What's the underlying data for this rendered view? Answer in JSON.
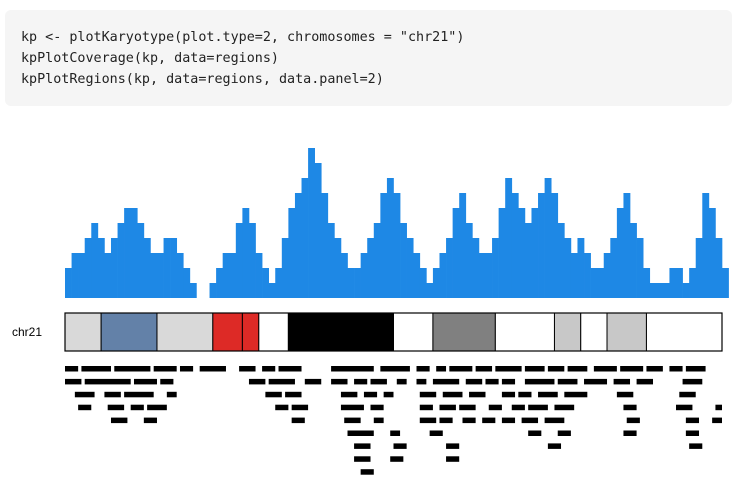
{
  "code": {
    "lines": [
      "kp <- plotKaryotype(plot.type=2, chromosomes = \"chr21\")",
      "kpPlotCoverage(kp, data=regions)",
      "kpPlotRegions(kp, data=regions, data.panel=2)"
    ]
  },
  "chart_data": {
    "type": "area",
    "title": "",
    "chromosome": "chr21",
    "colors": {
      "coverage": "#1e88e5",
      "regions": "#000000",
      "ideogram_outline": "#000000"
    },
    "coverage": {
      "x": [
        0,
        1,
        2,
        3,
        4,
        5,
        6,
        7,
        8,
        9,
        10,
        11,
        12,
        13,
        14,
        15,
        16,
        17,
        18,
        19,
        20,
        21,
        22,
        23,
        24,
        25,
        26,
        27,
        28,
        29,
        30,
        31,
        32,
        33,
        34,
        35,
        36,
        37,
        38,
        39,
        40,
        41,
        42,
        43,
        44,
        45,
        46,
        47,
        48,
        49,
        50,
        51,
        52,
        53,
        54,
        55,
        56,
        57,
        58,
        59,
        60,
        61,
        62,
        63,
        64,
        65,
        66,
        67,
        68,
        69,
        70,
        71,
        72,
        73,
        74,
        75,
        76,
        77,
        78,
        79,
        80,
        81,
        82,
        83,
        84,
        85,
        86,
        87,
        88,
        89,
        90,
        91,
        92,
        93,
        94,
        95,
        96,
        97,
        98,
        99,
        100
      ],
      "y": [
        2,
        3,
        3,
        4,
        5,
        4,
        3,
        4,
        5,
        6,
        6,
        5,
        4,
        3,
        3,
        4,
        4,
        3,
        2,
        1,
        0,
        0,
        1,
        2,
        3,
        3,
        5,
        6,
        5,
        3,
        2,
        1,
        2,
        4,
        6,
        7,
        8,
        10,
        9,
        7,
        5,
        4,
        3,
        2,
        2,
        3,
        4,
        5,
        7,
        8,
        7,
        5,
        4,
        3,
        2,
        1,
        2,
        3,
        4,
        6,
        7,
        5,
        4,
        3,
        3,
        4,
        6,
        8,
        7,
        6,
        5,
        6,
        7,
        8,
        7,
        5,
        4,
        3,
        4,
        3,
        2,
        2,
        3,
        4,
        6,
        7,
        5,
        4,
        2,
        1,
        1,
        1,
        2,
        2,
        1,
        2,
        4,
        7,
        6,
        4,
        2
      ]
    },
    "ideogram": [
      {
        "start": 0.0,
        "end": 5.5,
        "color": "#d9d9d9"
      },
      {
        "start": 5.5,
        "end": 14.0,
        "color": "#6381a8"
      },
      {
        "start": 14.0,
        "end": 22.5,
        "color": "#d9d9d9"
      },
      {
        "start": 22.5,
        "end": 27.0,
        "color": "#dd2a26"
      },
      {
        "start": 27.0,
        "end": 29.5,
        "color": "#dd2a26"
      },
      {
        "start": 29.5,
        "end": 34.0,
        "color": "#ffffff"
      },
      {
        "start": 34.0,
        "end": 50.0,
        "color": "#000000"
      },
      {
        "start": 50.0,
        "end": 56.0,
        "color": "#ffffff"
      },
      {
        "start": 56.0,
        "end": 65.5,
        "color": "#808080"
      },
      {
        "start": 65.5,
        "end": 74.5,
        "color": "#ffffff"
      },
      {
        "start": 74.5,
        "end": 78.5,
        "color": "#c8c8c8"
      },
      {
        "start": 78.5,
        "end": 82.5,
        "color": "#ffffff"
      },
      {
        "start": 82.5,
        "end": 88.5,
        "color": "#c8c8c8"
      },
      {
        "start": 88.5,
        "end": 100.0,
        "color": "#ffffff"
      }
    ],
    "regions": [
      {
        "start": 0.0,
        "end": 2.0,
        "row": 0
      },
      {
        "start": 2.5,
        "end": 7.0,
        "row": 0
      },
      {
        "start": 7.5,
        "end": 13.0,
        "row": 0
      },
      {
        "start": 13.5,
        "end": 17.0,
        "row": 0
      },
      {
        "start": 17.5,
        "end": 19.5,
        "row": 0
      },
      {
        "start": 20.5,
        "end": 24.5,
        "row": 0
      },
      {
        "start": 26.5,
        "end": 29.0,
        "row": 0
      },
      {
        "start": 30.0,
        "end": 32.0,
        "row": 0
      },
      {
        "start": 32.5,
        "end": 36.0,
        "row": 0
      },
      {
        "start": 40.5,
        "end": 47.0,
        "row": 0
      },
      {
        "start": 48.0,
        "end": 52.5,
        "row": 0
      },
      {
        "start": 53.5,
        "end": 55.5,
        "row": 0
      },
      {
        "start": 56.5,
        "end": 58.0,
        "row": 0
      },
      {
        "start": 58.5,
        "end": 62.0,
        "row": 0
      },
      {
        "start": 62.5,
        "end": 65.0,
        "row": 0
      },
      {
        "start": 65.5,
        "end": 69.5,
        "row": 0
      },
      {
        "start": 70.0,
        "end": 73.0,
        "row": 0
      },
      {
        "start": 73.5,
        "end": 76.0,
        "row": 0
      },
      {
        "start": 76.5,
        "end": 79.5,
        "row": 0
      },
      {
        "start": 80.5,
        "end": 84.0,
        "row": 0
      },
      {
        "start": 84.5,
        "end": 88.0,
        "row": 0
      },
      {
        "start": 88.5,
        "end": 91.0,
        "row": 0
      },
      {
        "start": 92.0,
        "end": 94.0,
        "row": 0
      },
      {
        "start": 94.5,
        "end": 97.5,
        "row": 0
      },
      {
        "start": 0.0,
        "end": 2.5,
        "row": 1
      },
      {
        "start": 3.0,
        "end": 10.0,
        "row": 1
      },
      {
        "start": 10.5,
        "end": 14.0,
        "row": 1
      },
      {
        "start": 14.5,
        "end": 16.5,
        "row": 1
      },
      {
        "start": 28.0,
        "end": 30.5,
        "row": 1
      },
      {
        "start": 31.0,
        "end": 35.0,
        "row": 1
      },
      {
        "start": 36.5,
        "end": 39.0,
        "row": 1
      },
      {
        "start": 40.5,
        "end": 43.0,
        "row": 1
      },
      {
        "start": 44.0,
        "end": 46.0,
        "row": 1
      },
      {
        "start": 46.5,
        "end": 49.0,
        "row": 1
      },
      {
        "start": 50.5,
        "end": 52.0,
        "row": 1
      },
      {
        "start": 53.5,
        "end": 55.0,
        "row": 1
      },
      {
        "start": 56.0,
        "end": 60.0,
        "row": 1
      },
      {
        "start": 61.0,
        "end": 63.5,
        "row": 1
      },
      {
        "start": 64.0,
        "end": 66.0,
        "row": 1
      },
      {
        "start": 66.5,
        "end": 68.5,
        "row": 1
      },
      {
        "start": 70.0,
        "end": 74.5,
        "row": 1
      },
      {
        "start": 75.0,
        "end": 78.0,
        "row": 1
      },
      {
        "start": 79.0,
        "end": 82.5,
        "row": 1
      },
      {
        "start": 83.5,
        "end": 86.0,
        "row": 1
      },
      {
        "start": 87.0,
        "end": 89.5,
        "row": 1
      },
      {
        "start": 94.0,
        "end": 97.0,
        "row": 1
      },
      {
        "start": 1.5,
        "end": 4.5,
        "row": 2
      },
      {
        "start": 6.0,
        "end": 8.5,
        "row": 2
      },
      {
        "start": 9.0,
        "end": 13.5,
        "row": 2
      },
      {
        "start": 15.5,
        "end": 17.0,
        "row": 2
      },
      {
        "start": 30.5,
        "end": 33.0,
        "row": 2
      },
      {
        "start": 33.5,
        "end": 36.0,
        "row": 2
      },
      {
        "start": 42.0,
        "end": 44.5,
        "row": 2
      },
      {
        "start": 45.5,
        "end": 47.5,
        "row": 2
      },
      {
        "start": 48.5,
        "end": 50.0,
        "row": 2
      },
      {
        "start": 54.0,
        "end": 56.5,
        "row": 2
      },
      {
        "start": 57.5,
        "end": 60.5,
        "row": 2
      },
      {
        "start": 61.5,
        "end": 64.0,
        "row": 2
      },
      {
        "start": 66.5,
        "end": 68.5,
        "row": 2
      },
      {
        "start": 69.0,
        "end": 71.0,
        "row": 2
      },
      {
        "start": 72.0,
        "end": 75.0,
        "row": 2
      },
      {
        "start": 76.0,
        "end": 79.5,
        "row": 2
      },
      {
        "start": 84.0,
        "end": 86.5,
        "row": 2
      },
      {
        "start": 93.5,
        "end": 96.0,
        "row": 2
      },
      {
        "start": 2.0,
        "end": 4.0,
        "row": 3
      },
      {
        "start": 6.5,
        "end": 9.0,
        "row": 3
      },
      {
        "start": 10.0,
        "end": 12.0,
        "row": 3
      },
      {
        "start": 12.5,
        "end": 15.5,
        "row": 3
      },
      {
        "start": 32.0,
        "end": 34.0,
        "row": 3
      },
      {
        "start": 34.5,
        "end": 37.0,
        "row": 3
      },
      {
        "start": 42.0,
        "end": 45.5,
        "row": 3
      },
      {
        "start": 46.5,
        "end": 48.5,
        "row": 3
      },
      {
        "start": 54.0,
        "end": 56.0,
        "row": 3
      },
      {
        "start": 57.0,
        "end": 59.5,
        "row": 3
      },
      {
        "start": 60.0,
        "end": 62.5,
        "row": 3
      },
      {
        "start": 64.5,
        "end": 66.5,
        "row": 3
      },
      {
        "start": 68.0,
        "end": 70.0,
        "row": 3
      },
      {
        "start": 70.5,
        "end": 73.5,
        "row": 3
      },
      {
        "start": 74.5,
        "end": 77.5,
        "row": 3
      },
      {
        "start": 85.0,
        "end": 87.0,
        "row": 3
      },
      {
        "start": 93.0,
        "end": 95.5,
        "row": 3
      },
      {
        "start": 99.0,
        "end": 100.0,
        "row": 3
      },
      {
        "start": 7.0,
        "end": 9.5,
        "row": 4
      },
      {
        "start": 12.0,
        "end": 14.0,
        "row": 4
      },
      {
        "start": 34.5,
        "end": 36.5,
        "row": 4
      },
      {
        "start": 42.5,
        "end": 45.0,
        "row": 4
      },
      {
        "start": 47.0,
        "end": 48.5,
        "row": 4
      },
      {
        "start": 54.0,
        "end": 56.5,
        "row": 4
      },
      {
        "start": 57.0,
        "end": 59.0,
        "row": 4
      },
      {
        "start": 60.5,
        "end": 62.5,
        "row": 4
      },
      {
        "start": 63.5,
        "end": 65.5,
        "row": 4
      },
      {
        "start": 66.5,
        "end": 68.5,
        "row": 4
      },
      {
        "start": 69.5,
        "end": 72.0,
        "row": 4
      },
      {
        "start": 73.0,
        "end": 76.0,
        "row": 4
      },
      {
        "start": 85.5,
        "end": 87.5,
        "row": 4
      },
      {
        "start": 94.5,
        "end": 96.5,
        "row": 4
      },
      {
        "start": 98.5,
        "end": 100.0,
        "row": 4
      },
      {
        "start": 43.0,
        "end": 47.0,
        "row": 5
      },
      {
        "start": 49.5,
        "end": 51.0,
        "row": 5
      },
      {
        "start": 55.5,
        "end": 57.5,
        "row": 5
      },
      {
        "start": 70.5,
        "end": 72.5,
        "row": 5
      },
      {
        "start": 75.0,
        "end": 77.0,
        "row": 5
      },
      {
        "start": 85.0,
        "end": 87.0,
        "row": 5
      },
      {
        "start": 94.5,
        "end": 96.5,
        "row": 5
      },
      {
        "start": 44.0,
        "end": 46.5,
        "row": 6
      },
      {
        "start": 50.0,
        "end": 52.0,
        "row": 6
      },
      {
        "start": 58.0,
        "end": 60.0,
        "row": 6
      },
      {
        "start": 73.5,
        "end": 75.5,
        "row": 6
      },
      {
        "start": 95.0,
        "end": 97.0,
        "row": 6
      },
      {
        "start": 44.0,
        "end": 46.5,
        "row": 7
      },
      {
        "start": 49.5,
        "end": 51.5,
        "row": 7
      },
      {
        "start": 58.0,
        "end": 60.0,
        "row": 7
      },
      {
        "start": 45.0,
        "end": 47.0,
        "row": 8
      }
    ]
  }
}
